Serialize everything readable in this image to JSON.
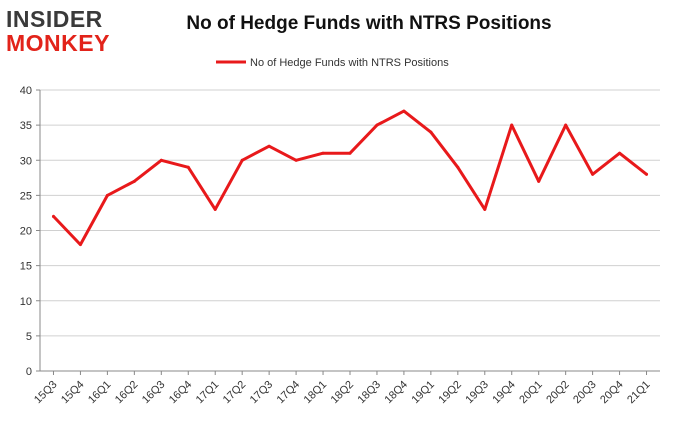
{
  "logo": {
    "line1": "INSIDER",
    "line2": "MONKEY"
  },
  "chart_data": {
    "type": "line",
    "title": "No of Hedge Funds with NTRS Positions",
    "xlabel": "",
    "ylabel": "",
    "ylim": [
      0,
      40
    ],
    "yticks": [
      0,
      5,
      10,
      15,
      20,
      25,
      30,
      35,
      40
    ],
    "grid": true,
    "legend": "top-center",
    "categories": [
      "15Q3",
      "15Q4",
      "16Q1",
      "16Q2",
      "16Q3",
      "16Q4",
      "17Q1",
      "17Q2",
      "17Q3",
      "17Q4",
      "18Q1",
      "18Q2",
      "18Q3",
      "18Q4",
      "19Q1",
      "19Q2",
      "19Q3",
      "19Q4",
      "20Q1",
      "20Q2",
      "20Q3",
      "20Q4",
      "21Q1"
    ],
    "series": [
      {
        "name": "No of Hedge Funds with NTRS Positions",
        "color": "#e8191b",
        "values": [
          22,
          18,
          25,
          27,
          30,
          29,
          23,
          30,
          32,
          30,
          31,
          31,
          35,
          37,
          34,
          29,
          23,
          35,
          27,
          35,
          28,
          31,
          28
        ]
      }
    ]
  }
}
